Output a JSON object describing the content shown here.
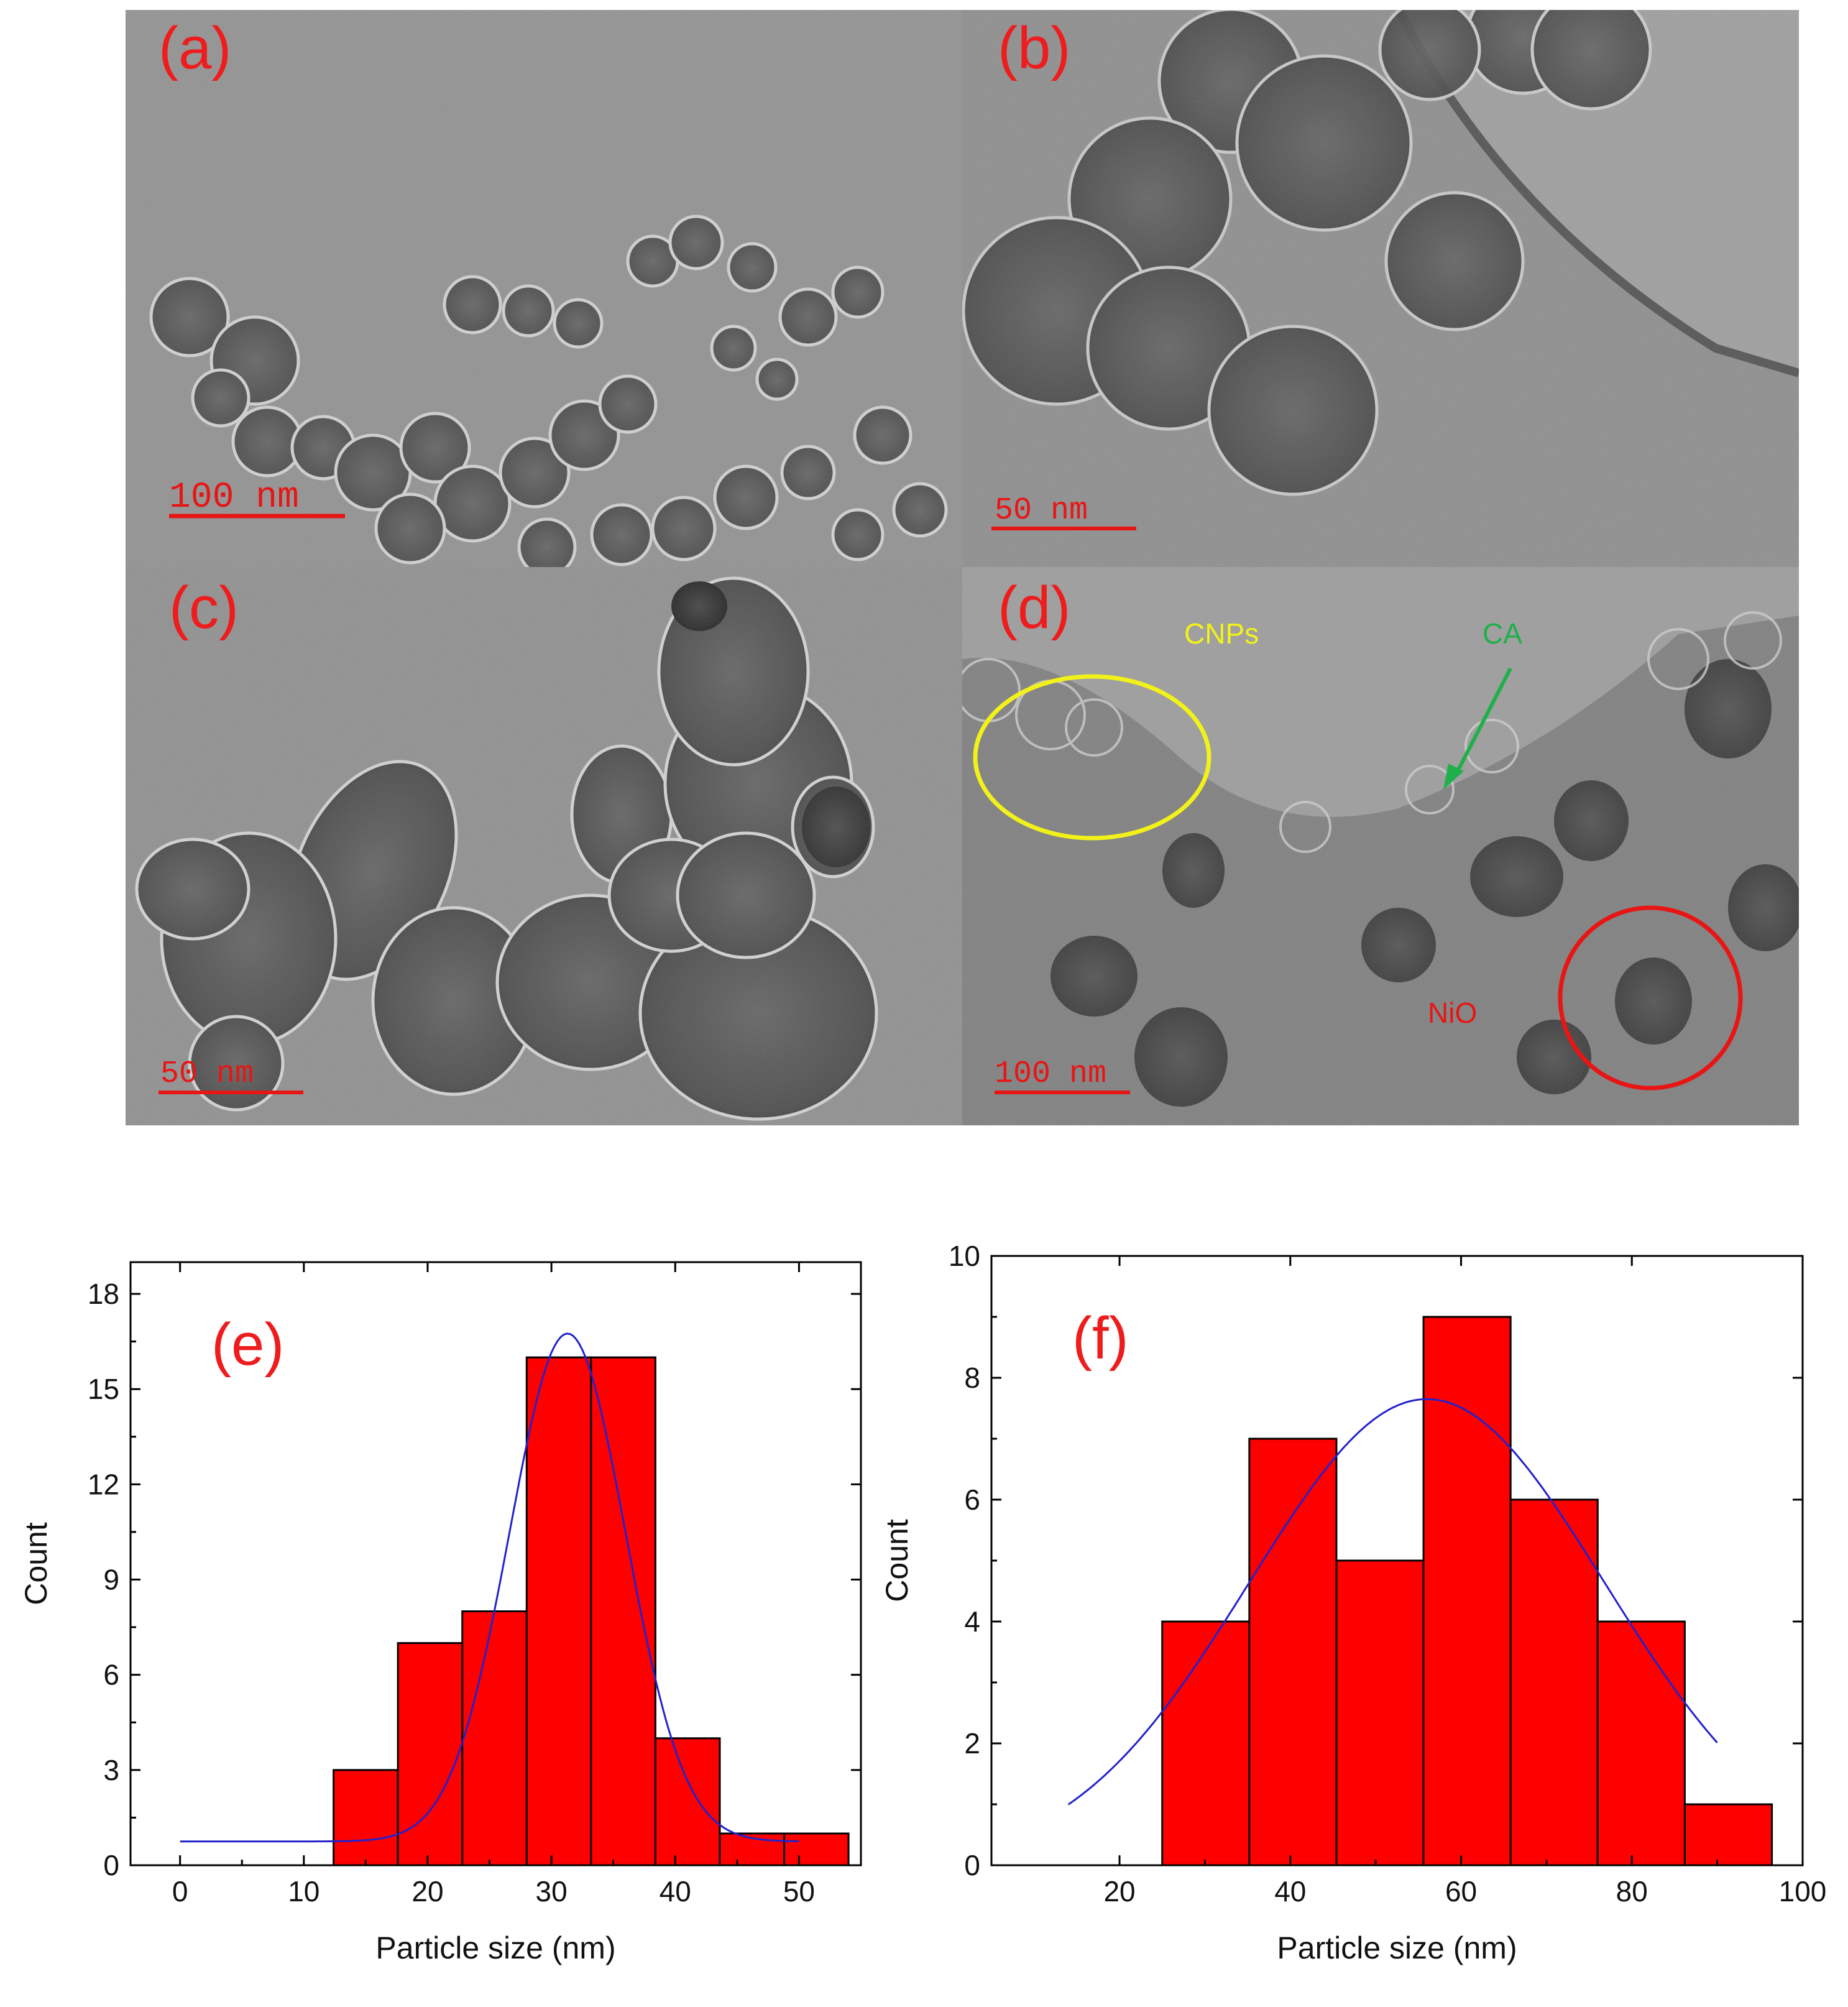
{
  "micrographs": {
    "a": {
      "label": "(a)",
      "scale_bar": "100 nm"
    },
    "b": {
      "label": "(b)",
      "scale_bar": "50 nm"
    },
    "c": {
      "label": "(c)",
      "scale_bar": "50 nm"
    },
    "d": {
      "label": "(d)",
      "scale_bar": "100 nm",
      "annotations": {
        "cnps": "CNPs",
        "ca": "CA",
        "nio": "NiO"
      }
    }
  },
  "colors": {
    "label_red": "#ee1c1c",
    "bar_fill": "#ff0000",
    "fit_line": "#2222cc",
    "cnps_yellow": "#f2f21a",
    "ca_green": "#1fb04a"
  },
  "chart_data": [
    {
      "type": "bar",
      "panel_label": "(e)",
      "title": "",
      "xlabel": "Particle size (nm)",
      "ylabel": "Count",
      "xlim": [
        -4,
        55
      ],
      "ylim": [
        0,
        19
      ],
      "xticks": [
        0,
        10,
        20,
        30,
        40,
        50
      ],
      "yticks": [
        0,
        3,
        6,
        9,
        12,
        15,
        18
      ],
      "bin_width": 5.2,
      "bars": [
        {
          "x": 15.0,
          "value": 3
        },
        {
          "x": 20.2,
          "value": 7
        },
        {
          "x": 25.4,
          "value": 8
        },
        {
          "x": 30.6,
          "value": 16
        },
        {
          "x": 35.8,
          "value": 16
        },
        {
          "x": 41.0,
          "value": 4
        },
        {
          "x": 46.2,
          "value": 1
        },
        {
          "x": 51.4,
          "value": 1
        }
      ],
      "fit": {
        "type": "gaussian",
        "baseline": 0.75,
        "amplitude": 16.0,
        "center": 31.3,
        "sigma": 4.7,
        "x_range": [
          0,
          50
        ]
      }
    },
    {
      "type": "bar",
      "panel_label": "(f)",
      "title": "",
      "xlabel": "Particle size (nm)",
      "ylabel": "Count",
      "xlim": [
        5,
        100
      ],
      "ylim": [
        0,
        10
      ],
      "xticks": [
        20,
        40,
        60,
        80,
        100
      ],
      "yticks": [
        0,
        2,
        4,
        6,
        8,
        10
      ],
      "bin_width": 10.2,
      "bars": [
        {
          "x": 30.1,
          "value": 4
        },
        {
          "x": 40.3,
          "value": 7
        },
        {
          "x": 50.5,
          "value": 5
        },
        {
          "x": 60.7,
          "value": 9
        },
        {
          "x": 70.9,
          "value": 6
        },
        {
          "x": 81.1,
          "value": 4
        },
        {
          "x": 91.3,
          "value": 1
        }
      ],
      "fit": {
        "type": "gaussian",
        "baseline": 0,
        "amplitude": 7.65,
        "center": 56.0,
        "sigma": 20.8,
        "x_range": [
          14,
          90
        ]
      }
    }
  ]
}
